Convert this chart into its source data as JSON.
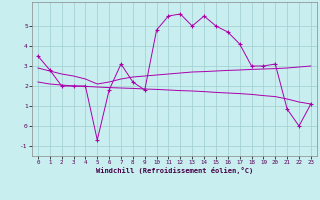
{
  "xlabel": "Windchill (Refroidissement éolien,°C)",
  "background_color": "#c8eef0",
  "grid_color": "#a0cdd0",
  "line_color": "#aa00aa",
  "xlim": [
    -0.5,
    23.5
  ],
  "ylim": [
    -1.5,
    6.2
  ],
  "yticks": [
    -1,
    0,
    1,
    2,
    3,
    4,
    5
  ],
  "xticks": [
    0,
    1,
    2,
    3,
    4,
    5,
    6,
    7,
    8,
    9,
    10,
    11,
    12,
    13,
    14,
    15,
    16,
    17,
    18,
    19,
    20,
    21,
    22,
    23
  ],
  "series1_x": [
    0,
    1,
    2,
    3,
    4,
    5,
    6,
    7,
    8,
    9,
    10,
    11,
    12,
    13,
    14,
    15,
    16,
    17,
    18,
    19,
    20,
    21,
    22,
    23
  ],
  "series1_y": [
    3.5,
    2.8,
    2.0,
    2.0,
    2.0,
    -0.7,
    1.8,
    3.1,
    2.2,
    1.8,
    4.8,
    5.5,
    5.6,
    5.0,
    5.5,
    5.0,
    4.7,
    4.1,
    3.0,
    3.0,
    3.1,
    0.85,
    0.0,
    1.1
  ],
  "series2_x": [
    0,
    1,
    2,
    3,
    4,
    5,
    6,
    7,
    8,
    9,
    10,
    11,
    12,
    13,
    14,
    15,
    16,
    17,
    18,
    19,
    20,
    21,
    22,
    23
  ],
  "series2_y": [
    2.9,
    2.75,
    2.6,
    2.5,
    2.35,
    2.1,
    2.2,
    2.35,
    2.45,
    2.5,
    2.55,
    2.6,
    2.65,
    2.7,
    2.72,
    2.75,
    2.78,
    2.8,
    2.83,
    2.85,
    2.87,
    2.9,
    2.95,
    3.0
  ],
  "series3_x": [
    0,
    1,
    2,
    3,
    4,
    5,
    6,
    7,
    8,
    9,
    10,
    11,
    12,
    13,
    14,
    15,
    16,
    17,
    18,
    19,
    20,
    21,
    22,
    23
  ],
  "series3_y": [
    2.2,
    2.1,
    2.05,
    2.0,
    1.98,
    1.95,
    1.92,
    1.9,
    1.88,
    1.85,
    1.83,
    1.8,
    1.77,
    1.75,
    1.72,
    1.68,
    1.65,
    1.62,
    1.58,
    1.52,
    1.47,
    1.35,
    1.2,
    1.1
  ]
}
